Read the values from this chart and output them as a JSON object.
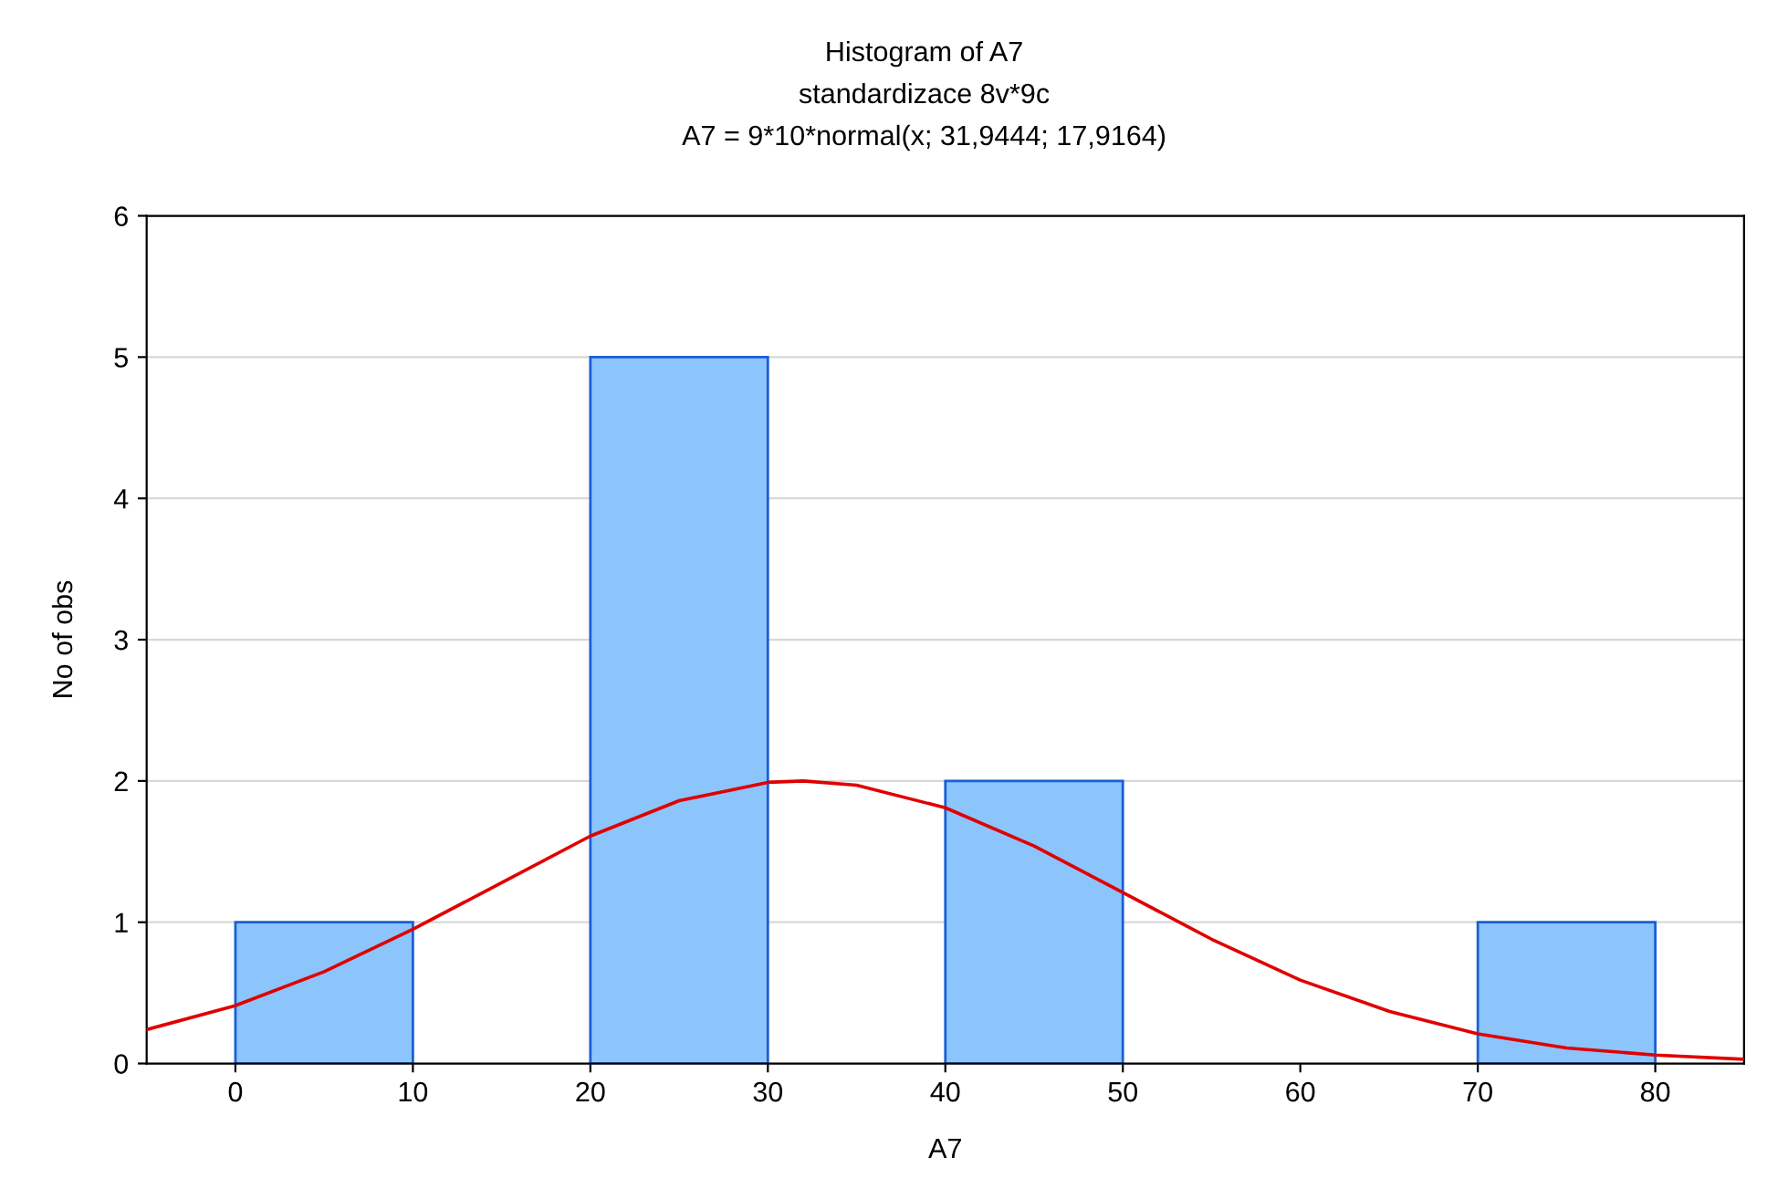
{
  "chart_data": {
    "type": "histogram",
    "title": "Histogram of A7",
    "subtitle": "standardizace 8v*9c",
    "annotations": [
      "A7 = 9*10*normal(x; 31,9444; 17,9164)"
    ],
    "xlabel": "A7",
    "ylabel": "No of obs",
    "bins": [
      0,
      10,
      20,
      30,
      40,
      50,
      60,
      70,
      80
    ],
    "values": [
      1,
      0,
      5,
      0,
      2,
      0,
      0,
      1
    ],
    "color": "#8cc4fc",
    "series": [
      {
        "type": "line",
        "color": "#e00000",
        "x": [
          -5,
          0,
          5,
          10,
          15,
          20,
          25,
          30,
          32,
          35,
          40,
          45,
          50,
          55,
          60,
          65,
          70,
          75,
          80,
          85
        ],
        "values": [
          0.24,
          0.41,
          0.65,
          0.95,
          1.28,
          1.61,
          1.86,
          1.99,
          2.0,
          1.97,
          1.81,
          1.54,
          1.21,
          0.88,
          0.59,
          0.37,
          0.21,
          0.11,
          0.06,
          0.03
        ]
      }
    ],
    "xlim": [
      -5,
      85
    ],
    "xticks": [
      0,
      10,
      20,
      30,
      40,
      50,
      60,
      70,
      80
    ],
    "ylim": [
      0,
      6
    ],
    "yticks": [
      0,
      1,
      2,
      3,
      4,
      5,
      6
    ],
    "grid": "y",
    "legend": false
  }
}
